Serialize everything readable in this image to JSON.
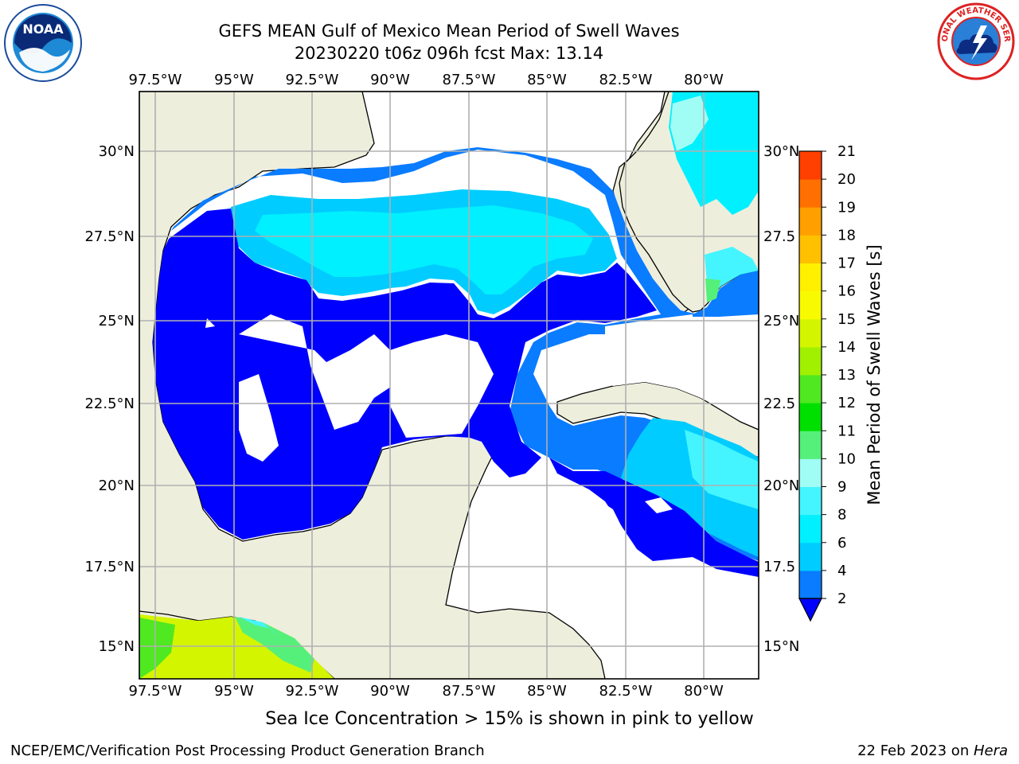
{
  "title_line1": "GEFS MEAN Gulf of Mexico Mean Period of Swell Waves",
  "title_line2": "20230220 t06z 096h fcst   Max: 13.14",
  "map": {
    "lon_labels": [
      "97.5°W",
      "95°W",
      "92.5°W",
      "90°W",
      "87.5°W",
      "85°W",
      "82.5°W",
      "80°W"
    ],
    "lat_labels": [
      "30°N",
      "27.5°N",
      "25°N",
      "22.5°N",
      "20°N",
      "17.5°N",
      "15°N"
    ],
    "lat_labels_right": [
      "30°N",
      "27.5",
      "25°N",
      "22.5",
      "20°N",
      "17.5",
      "15°N"
    ],
    "lon_values": [
      -97.5,
      -95,
      -92.5,
      -90,
      -87.5,
      -85,
      -82.5,
      -80
    ],
    "lat_values": [
      30,
      27.5,
      25,
      22.5,
      20,
      17.5,
      15
    ],
    "extent": {
      "lon_min": -98,
      "lon_max": -78.3,
      "lat_min": 14,
      "lat_max": 31.9
    }
  },
  "colorbar": {
    "label": "Mean Period of Swell Waves [s]",
    "ticks": [
      "2",
      "4",
      "6",
      "8",
      "9",
      "10",
      "11",
      "12",
      "13",
      "14",
      "15",
      "16",
      "17",
      "18",
      "19",
      "20",
      "21"
    ],
    "colors": [
      "#0a7cff",
      "#00ccff",
      "#00f0ff",
      "#44f5ff",
      "#a0fdf5",
      "#55f07a",
      "#00e000",
      "#50e820",
      "#a0f000",
      "#d4f500",
      "#f8fb00",
      "#fff000",
      "#ffc000",
      "#ffa000",
      "#ff7000",
      "#ff4000",
      "#ff0000"
    ],
    "extend_color": "#0000ff"
  },
  "colors": {
    "land": "#eeeedd",
    "grid": "#b0b0b0",
    "deep_blue": "#0000ff"
  },
  "footer": {
    "subtitle": "Sea Ice Concentration > 15% is shown in pink to yellow",
    "credit": "NCEP/EMC/Verification Post Processing Product Generation Branch",
    "date_prefix": "22 Feb 2023 on ",
    "date_host": "Hera"
  },
  "logos": {
    "noaa_text": "NOAA",
    "nws_text": "NATIONAL WEATHER SERVICE"
  }
}
